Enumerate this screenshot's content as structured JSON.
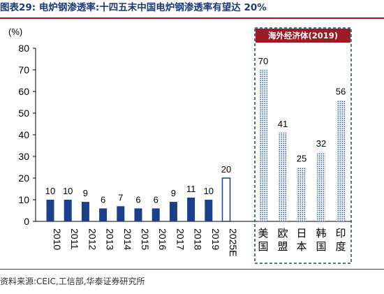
{
  "figure_title": "图表29:  电炉钢渗透率:十四五末中国电炉钢渗透率有望达 20%",
  "source": "资料来源:CEIC,工信部,华泰证券研究所",
  "colors": {
    "title": "#1c3a78",
    "bar_dark": "#1b3f8b",
    "bar_dotted": "#2d5fb3",
    "panel_header": "#9b1d23",
    "rule": "#9b1d23"
  },
  "chart_data": {
    "type": "bar",
    "unit_label": "(%)",
    "ylim": [
      0,
      80
    ],
    "yticks": [
      0,
      10,
      20,
      30,
      40,
      50,
      60,
      70,
      80
    ],
    "grid": false,
    "china_series": {
      "categories": [
        "2010",
        "2011",
        "2012",
        "2013",
        "2014",
        "2015",
        "2016",
        "2017",
        "2018",
        "2019",
        "2025E"
      ],
      "values": [
        10,
        10,
        9,
        6,
        7,
        6,
        6,
        9,
        11,
        10,
        20
      ],
      "styles": [
        "solid",
        "solid",
        "solid",
        "solid",
        "solid",
        "solid",
        "solid",
        "solid",
        "solid",
        "solid",
        "outline"
      ]
    },
    "overseas_panel": {
      "title": "海外经济体(2019)",
      "categories": [
        "美国",
        "欧盟",
        "日本",
        "韩国",
        "印度"
      ],
      "values": [
        70,
        41,
        25,
        32,
        56
      ]
    }
  }
}
